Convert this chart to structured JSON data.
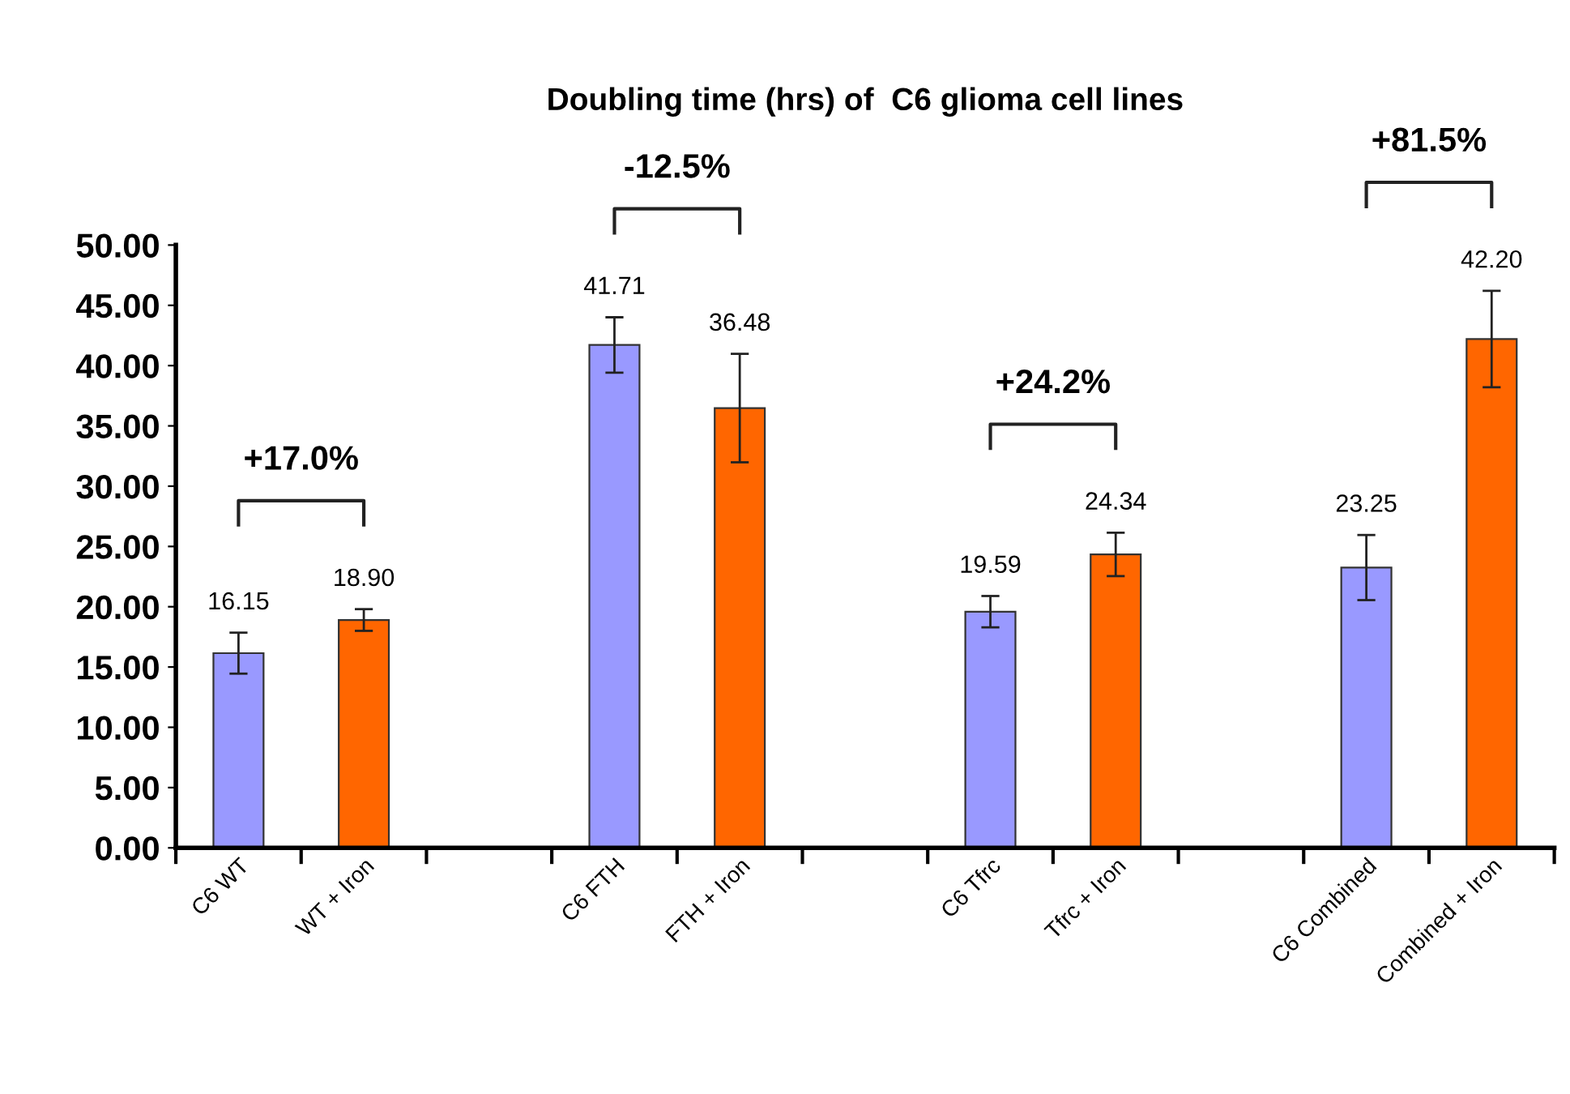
{
  "chart_data": {
    "type": "bar",
    "title": "Doubling time (hrs) of  C6 glioma cell lines",
    "categories": [
      "C6 WT",
      "WT + Iron",
      null,
      "C6 FTH",
      "FTH + Iron",
      null,
      "C6 Tfrc",
      "Tfrc + Iron",
      null,
      "C6 Combined",
      "Combined + Iron"
    ],
    "values": [
      16.15,
      18.9,
      null,
      41.71,
      36.48,
      null,
      19.59,
      24.34,
      null,
      23.25,
      42.2
    ],
    "colors": [
      "#9999ff",
      "#ff6600",
      null,
      "#9999ff",
      "#ff6600",
      null,
      "#9999ff",
      "#ff6600",
      null,
      "#9999ff",
      "#ff6600"
    ],
    "errors": [
      1.7,
      0.9,
      null,
      2.3,
      4.5,
      null,
      1.3,
      1.8,
      null,
      2.7,
      4.0
    ],
    "value_labels": [
      "16.15",
      "18.90",
      null,
      "41.71",
      "36.48",
      null,
      "19.59",
      "24.34",
      null,
      "23.25",
      "42.20"
    ],
    "annotations": [
      "+17.0%",
      "-12.5%",
      "+24.2%",
      "+81.5%"
    ],
    "ylim": [
      0,
      50
    ],
    "yticks": [
      {
        "value": 0,
        "label": "0.00"
      },
      {
        "value": 5,
        "label": "5.00"
      },
      {
        "value": 10,
        "label": "10.00"
      },
      {
        "value": 15,
        "label": "15.00"
      },
      {
        "value": 20,
        "label": "20.00"
      },
      {
        "value": 25,
        "label": "25.00"
      },
      {
        "value": 30,
        "label": "30.00"
      },
      {
        "value": 35,
        "label": "35.00"
      },
      {
        "value": 40,
        "label": "40.00"
      },
      {
        "value": 45,
        "label": "45.00"
      },
      {
        "value": 50,
        "label": "50.00"
      }
    ],
    "grid": false
  }
}
